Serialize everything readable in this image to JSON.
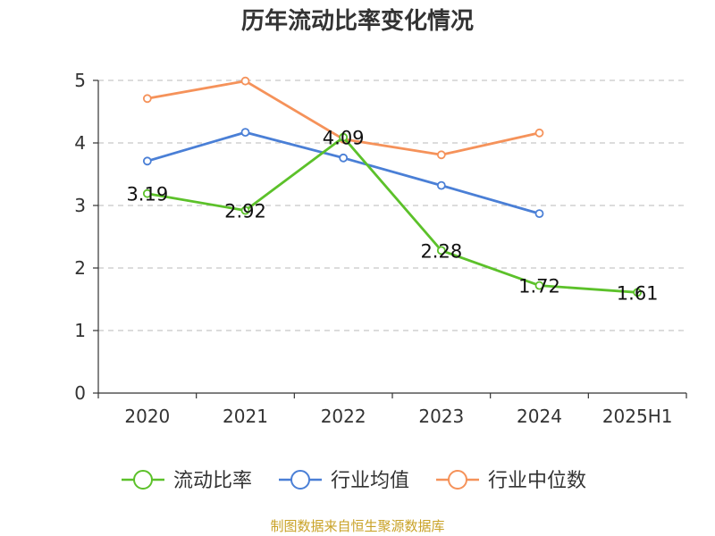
{
  "chart_data": {
    "type": "line",
    "title": "历年流动比率变化情况",
    "categories": [
      "2020",
      "2021",
      "2022",
      "2023",
      "2024",
      "2025H1"
    ],
    "y_ticks": [
      "0",
      "1",
      "2",
      "3",
      "4",
      "5"
    ],
    "ylim": [
      0,
      5
    ],
    "grid": true,
    "legend_position": "bottom",
    "series": [
      {
        "name": "流动比率",
        "color": "#5cc12a",
        "values": [
          3.19,
          2.92,
          4.09,
          2.28,
          1.72,
          1.61
        ],
        "labels": [
          "3.19",
          "2.92",
          "4.09",
          "2.28",
          "1.72",
          "1.61"
        ]
      },
      {
        "name": "行业均值",
        "color": "#4a7fd6",
        "values": [
          3.71,
          4.17,
          3.76,
          3.32,
          2.87,
          null
        ]
      },
      {
        "name": "行业中位数",
        "color": "#f5925a",
        "values": [
          4.71,
          4.99,
          4.06,
          3.81,
          4.16,
          null
        ]
      }
    ],
    "source": "制图数据来自恒生聚源数据库"
  }
}
